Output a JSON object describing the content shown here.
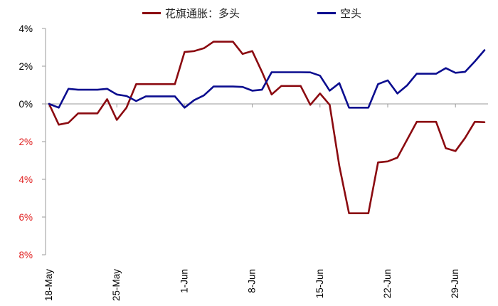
{
  "chart_data": {
    "type": "line",
    "title": "",
    "xlabel": "",
    "ylabel": "",
    "ylim": [
      -8,
      4
    ],
    "yticks": [
      {
        "value": 4,
        "label": "4%"
      },
      {
        "value": 2,
        "label": "2%"
      },
      {
        "value": 0,
        "label": "0%"
      },
      {
        "value": -2,
        "label": "2%"
      },
      {
        "value": -4,
        "label": "4%"
      },
      {
        "value": -6,
        "label": "6%"
      },
      {
        "value": -8,
        "label": "8%"
      }
    ],
    "xticks": [
      {
        "index": 0,
        "label": "18-May"
      },
      {
        "index": 7,
        "label": "25-May"
      },
      {
        "index": 14,
        "label": "1-Jun"
      },
      {
        "index": 21,
        "label": "8-Jun"
      },
      {
        "index": 28,
        "label": "15-Jun"
      },
      {
        "index": 35,
        "label": "22-Jun"
      },
      {
        "index": 42,
        "label": "29-Jun"
      }
    ],
    "grid": false,
    "legend_position": "top",
    "series": [
      {
        "name": "花旗通胀：多头",
        "color": "#8b0a10",
        "values": [
          0,
          -1.1,
          -1.0,
          -0.5,
          -0.5,
          -0.5,
          0.25,
          -0.85,
          -0.2,
          1.05,
          1.05,
          1.05,
          1.05,
          1.05,
          2.75,
          2.8,
          2.95,
          3.3,
          3.3,
          3.3,
          2.65,
          2.8,
          1.7,
          0.5,
          0.95,
          0.95,
          0.95,
          -0.05,
          0.55,
          -0.05,
          -3.3,
          -5.8,
          -5.8,
          -5.8,
          -3.1,
          -3.05,
          -2.85,
          -1.9,
          -0.95,
          -0.95,
          -0.95,
          -2.35,
          -2.5,
          -1.8,
          -0.95,
          -0.97
        ]
      },
      {
        "name": "空头",
        "color": "#0b0d8f",
        "values": [
          0,
          -0.2,
          0.8,
          0.75,
          0.75,
          0.75,
          0.8,
          0.5,
          0.42,
          0.15,
          0.4,
          0.4,
          0.4,
          0.4,
          -0.2,
          0.2,
          0.45,
          0.92,
          0.92,
          0.92,
          0.9,
          0.7,
          0.75,
          1.68,
          1.68,
          1.68,
          1.68,
          1.67,
          1.5,
          0.7,
          1.1,
          -0.2,
          -0.2,
          -0.2,
          1.05,
          1.25,
          0.55,
          0.98,
          1.6,
          1.6,
          1.6,
          1.9,
          1.65,
          1.7,
          2.25,
          2.85
        ]
      }
    ],
    "tick_colors": {
      "positive": "#000000",
      "negative": "#e02020"
    }
  }
}
